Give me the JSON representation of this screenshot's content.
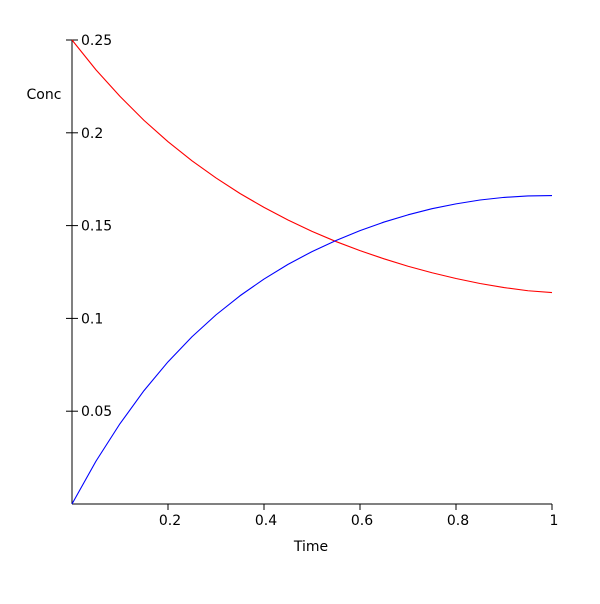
{
  "chart_data": {
    "type": "line",
    "xlabel": "Time",
    "ylabel": "Conc",
    "xlim": [
      0,
      1
    ],
    "ylim": [
      0,
      0.25
    ],
    "x_ticks": [
      {
        "value": 0.2,
        "label": "0.2"
      },
      {
        "value": 0.4,
        "label": "0.4"
      },
      {
        "value": 0.6,
        "label": "0.6"
      },
      {
        "value": 0.8,
        "label": "0.8"
      },
      {
        "value": 1.0,
        "label": "1"
      }
    ],
    "y_ticks": [
      {
        "value": 0.05,
        "label": "0.05"
      },
      {
        "value": 0.1,
        "label": "0.1"
      },
      {
        "value": 0.15,
        "label": "0.15"
      },
      {
        "value": 0.2,
        "label": "0.2"
      },
      {
        "value": 0.25,
        "label": "0.25"
      }
    ],
    "grid": false,
    "x": [
      0,
      0.05,
      0.1,
      0.15,
      0.2,
      0.25,
      0.3,
      0.35,
      0.4,
      0.45,
      0.5,
      0.55,
      0.6,
      0.65,
      0.7,
      0.75,
      0.8,
      0.85,
      0.9,
      0.95,
      1.0
    ],
    "series": [
      {
        "color": "#ff0000",
        "values": [
          0.25,
          0.2339,
          0.2196,
          0.2067,
          0.1952,
          0.1849,
          0.1757,
          0.1673,
          0.1598,
          0.153,
          0.1469,
          0.1414,
          0.1365,
          0.1321,
          0.1281,
          0.1246,
          0.1215,
          0.1188,
          0.1166,
          0.1149,
          0.1139
        ]
      },
      {
        "color": "#0000ff",
        "values": [
          0.0,
          0.0231,
          0.0433,
          0.0611,
          0.0766,
          0.0901,
          0.1019,
          0.1122,
          0.1212,
          0.1291,
          0.136,
          0.142,
          0.1473,
          0.1519,
          0.1558,
          0.1591,
          0.1617,
          0.1638,
          0.1652,
          0.166,
          0.1662
        ]
      }
    ]
  }
}
